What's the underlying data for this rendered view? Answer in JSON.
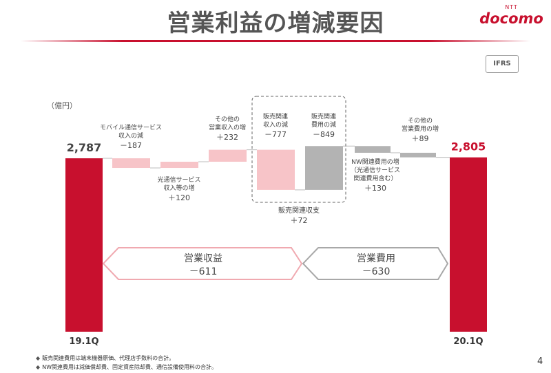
{
  "title": "営業利益の増減要因",
  "brand": {
    "ntt": "NTT",
    "name": "docomo"
  },
  "badge": "IFRS",
  "unit": "（億円）",
  "colors": {
    "accent": "#c8102e",
    "pink": "#f7c4c8",
    "gray": "#b3b3b3"
  },
  "chart_data": {
    "type": "waterfall",
    "unit": "（億円）",
    "ylim": [
      0,
      2900
    ],
    "start": {
      "label": "19.1Q",
      "value": 2787,
      "value_label": "2,787"
    },
    "end": {
      "label": "20.1Q",
      "value": 2805,
      "value_label": "2,805"
    },
    "steps": [
      {
        "label_lines": [
          "モバイル通信サービス",
          "収入の減"
        ],
        "value": -187,
        "value_label": "－187",
        "group": "revenue"
      },
      {
        "label_lines": [
          "光通信サービス",
          "収入等の増"
        ],
        "value": 120,
        "value_label": "＋120",
        "group": "revenue"
      },
      {
        "label_lines": [
          "その他の",
          "営業収入の増"
        ],
        "value": 232,
        "value_label": "＋232",
        "group": "revenue"
      },
      {
        "label_lines": [
          "販売関連",
          "収入の減"
        ],
        "value": -777,
        "value_label": "－777",
        "group": "revenue"
      },
      {
        "label_lines": [
          "販売関連",
          "費用の減"
        ],
        "value": 849,
        "value_label": "－849",
        "group": "expense"
      },
      {
        "label_lines": [
          "NW関連費用の増",
          "（光通信サービス",
          "関連費用含む）"
        ],
        "value": -130,
        "value_label": "＋130",
        "group": "expense"
      },
      {
        "label_lines": [
          "その他の",
          "営業費用の増"
        ],
        "value": -89,
        "value_label": "＋89",
        "group": "expense"
      }
    ],
    "sales_related_net": {
      "label": "販売関連収支",
      "value_label": "＋72"
    },
    "groups": [
      {
        "name": "営業収益",
        "value_label": "－611"
      },
      {
        "name": "営業費用",
        "value_label": "－630"
      }
    ]
  },
  "footnotes": [
    {
      "mark": "◆",
      "text": "販売関連費用は端末機器原価、代理店手数料の合計。"
    },
    {
      "mark": "◆",
      "text": "NW関連費用は減価償却費、固定資産除却費、通信設備使用料の合計。"
    }
  ],
  "page_number": "4"
}
